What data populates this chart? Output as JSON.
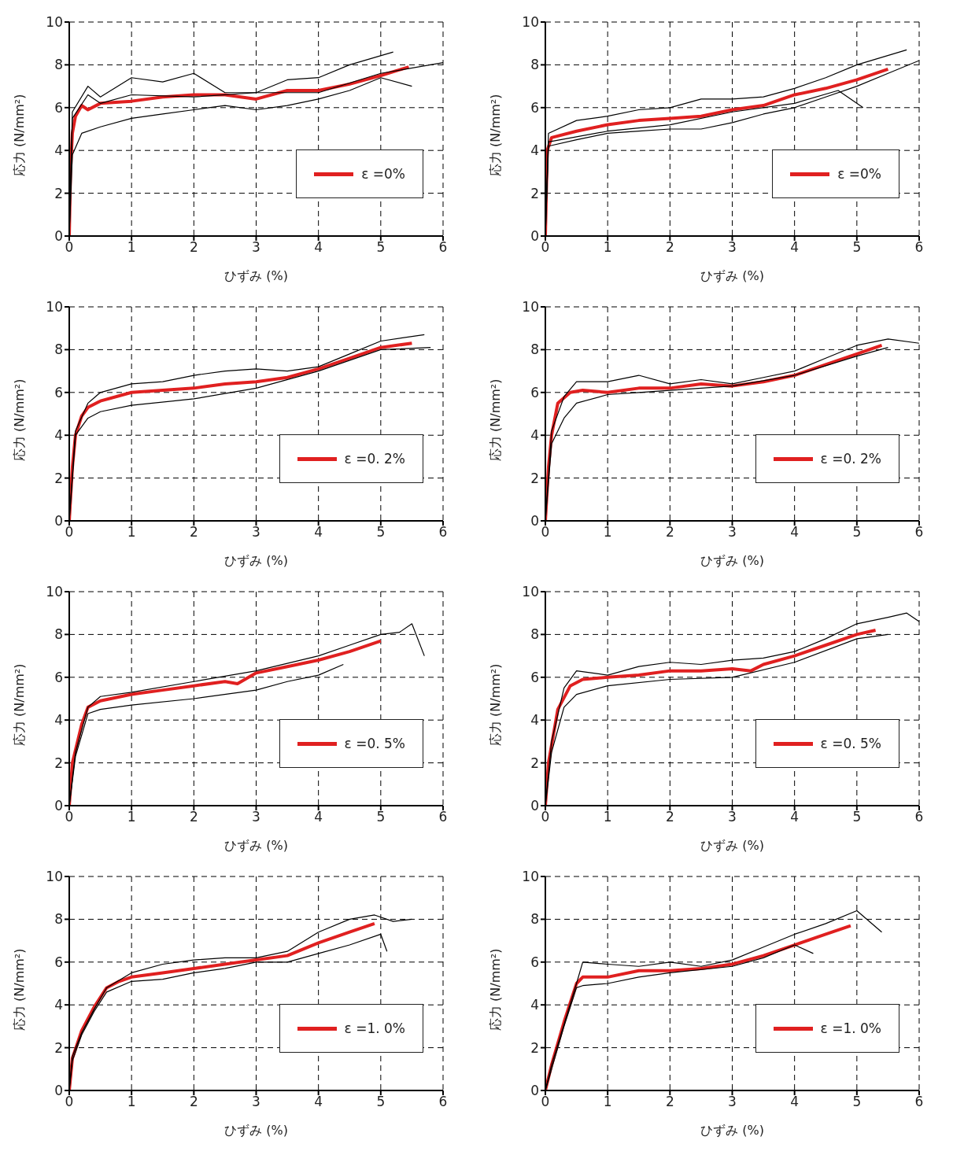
{
  "chart_data": [
    {
      "type": "line",
      "xlabel": "ひずみ (%)",
      "ylabel": "応力 (N/mm²)",
      "xlim": [
        0,
        6
      ],
      "ylim": [
        0,
        10
      ],
      "xticks": [
        0,
        1,
        2,
        3,
        4,
        5,
        6
      ],
      "yticks": [
        0,
        2,
        4,
        6,
        8,
        10
      ],
      "grid": true,
      "legend": "bottom right",
      "series": [
        {
          "name": "ε =0%",
          "color": "#e02020",
          "x": [
            0,
            0.02,
            0.05,
            0.1,
            0.2,
            0.3,
            0.5,
            1,
            1.5,
            2,
            2.5,
            3,
            3.5,
            4,
            4.5,
            5,
            5.45
          ],
          "values": [
            0,
            3,
            4.8,
            5.6,
            6.1,
            5.9,
            6.2,
            6.3,
            6.5,
            6.6,
            6.6,
            6.4,
            6.8,
            6.8,
            7.1,
            7.5,
            7.9
          ]
        },
        {
          "color": "#000000",
          "x": [
            0,
            0.05,
            0.3,
            0.5,
            1,
            1.5,
            2,
            2.5,
            3,
            3.5,
            4,
            4.5,
            5.2
          ],
          "values": [
            0,
            5.8,
            7,
            6.5,
            7.4,
            7.2,
            7.6,
            6.7,
            6.7,
            7.3,
            7.4,
            8,
            8.6
          ]
        },
        {
          "color": "#000000",
          "x": [
            0,
            0.05,
            0.2,
            0.5,
            1,
            1.5,
            2,
            2.5,
            3,
            3.5,
            4,
            4.5,
            5,
            5.5
          ],
          "values": [
            0,
            3.8,
            4.8,
            5.1,
            5.5,
            5.7,
            5.9,
            6.1,
            5.9,
            6.1,
            6.4,
            6.8,
            7.4,
            7
          ]
        },
        {
          "color": "#000000",
          "x": [
            0,
            0.05,
            0.3,
            0.5,
            1,
            2,
            3,
            4,
            5,
            6
          ],
          "values": [
            0,
            5.5,
            6.6,
            6.2,
            6.6,
            6.5,
            6.7,
            6.7,
            7.6,
            8.1
          ]
        }
      ]
    },
    {
      "type": "line",
      "xlabel": "ひずみ (%)",
      "ylabel": "応力 (N/mm²)",
      "xlim": [
        0,
        6
      ],
      "ylim": [
        0,
        10
      ],
      "xticks": [
        0,
        1,
        2,
        3,
        4,
        5,
        6
      ],
      "yticks": [
        0,
        2,
        4,
        6,
        8,
        10
      ],
      "grid": true,
      "legend": "bottom right",
      "series": [
        {
          "name": "ε =0%",
          "color": "#e02020",
          "x": [
            0,
            0.03,
            0.1,
            0.5,
            1,
            1.5,
            2,
            2.5,
            3,
            3.5,
            4,
            4.5,
            5,
            5.5
          ],
          "values": [
            0,
            4,
            4.6,
            4.9,
            5.2,
            5.4,
            5.5,
            5.6,
            5.9,
            6.1,
            6.6,
            6.9,
            7.3,
            7.8
          ]
        },
        {
          "color": "#000000",
          "x": [
            0,
            0.05,
            0.5,
            1,
            1.5,
            2,
            2.5,
            3,
            3.5,
            4,
            4.5,
            5,
            5.8
          ],
          "values": [
            0,
            4.8,
            5.4,
            5.6,
            5.9,
            6,
            6.4,
            6.4,
            6.5,
            6.9,
            7.4,
            8,
            8.7
          ]
        },
        {
          "color": "#000000",
          "x": [
            0,
            0.05,
            0.5,
            1,
            1.5,
            2,
            2.5,
            3,
            3.5,
            4,
            4.5,
            5,
            5.5,
            6
          ],
          "values": [
            0,
            4.2,
            4.5,
            4.8,
            4.9,
            5,
            5,
            5.3,
            5.7,
            6,
            6.5,
            7,
            7.6,
            8.2
          ]
        },
        {
          "color": "#000000",
          "x": [
            0,
            0.05,
            1,
            2,
            3,
            4,
            4.7,
            5.1
          ],
          "values": [
            0,
            4.4,
            4.9,
            5.2,
            5.8,
            6.2,
            6.8,
            6
          ]
        }
      ]
    },
    {
      "type": "line",
      "xlabel": "ひずみ (%)",
      "ylabel": "応力 (N/mm²)",
      "xlim": [
        0,
        6
      ],
      "ylim": [
        0,
        10
      ],
      "xticks": [
        0,
        1,
        2,
        3,
        4,
        5,
        6
      ],
      "yticks": [
        0,
        2,
        4,
        6,
        8,
        10
      ],
      "grid": true,
      "legend": "bottom right",
      "series": [
        {
          "name": "ε =0. 2%",
          "color": "#e02020",
          "x": [
            0,
            0.05,
            0.1,
            0.2,
            0.3,
            0.5,
            1,
            1.5,
            2,
            2.5,
            3,
            3.5,
            4,
            4.5,
            5,
            5.5
          ],
          "values": [
            0,
            2.5,
            4,
            4.9,
            5.3,
            5.6,
            6,
            6.1,
            6.2,
            6.4,
            6.5,
            6.7,
            7.1,
            7.6,
            8.1,
            8.3
          ]
        },
        {
          "color": "#000000",
          "x": [
            0,
            0.1,
            0.3,
            0.5,
            1,
            1.5,
            2,
            2.5,
            3,
            3.5,
            4,
            4.5,
            5,
            5.7
          ],
          "values": [
            0,
            4.2,
            5.5,
            6,
            6.4,
            6.5,
            6.8,
            7,
            7.1,
            7,
            7.2,
            7.8,
            8.4,
            8.7
          ]
        },
        {
          "color": "#000000",
          "x": [
            0,
            0.1,
            0.3,
            0.5,
            1,
            2,
            3,
            4,
            5,
            5.8
          ],
          "values": [
            0,
            4,
            4.8,
            5.1,
            5.4,
            5.7,
            6.2,
            7,
            8,
            8.1
          ]
        }
      ]
    },
    {
      "type": "line",
      "xlabel": "ひずみ (%)",
      "ylabel": "応力 (N/mm²)",
      "xlim": [
        0,
        6
      ],
      "ylim": [
        0,
        10
      ],
      "xticks": [
        0,
        1,
        2,
        3,
        4,
        5,
        6
      ],
      "yticks": [
        0,
        2,
        4,
        6,
        8,
        10
      ],
      "grid": true,
      "legend": "bottom right",
      "series": [
        {
          "name": "ε =0. 2%",
          "color": "#e02020",
          "x": [
            0,
            0.05,
            0.1,
            0.2,
            0.4,
            0.6,
            1,
            1.5,
            2,
            2.5,
            3,
            3.5,
            4,
            4.5,
            5,
            5.4
          ],
          "values": [
            0,
            2.5,
            4,
            5.5,
            6,
            6.1,
            6,
            6.2,
            6.2,
            6.4,
            6.3,
            6.5,
            6.8,
            7.3,
            7.8,
            8.2
          ]
        },
        {
          "color": "#000000",
          "x": [
            0,
            0.1,
            0.3,
            0.5,
            1,
            1.5,
            2,
            2.5,
            3,
            3.5,
            4,
            4.5,
            5,
            5.5,
            6
          ],
          "values": [
            0,
            4.2,
            5.8,
            6.5,
            6.5,
            6.8,
            6.4,
            6.6,
            6.4,
            6.7,
            7,
            7.6,
            8.2,
            8.5,
            8.3
          ]
        },
        {
          "color": "#000000",
          "x": [
            0,
            0.1,
            0.3,
            0.5,
            1,
            1.5,
            2,
            3,
            4,
            5,
            5.5
          ],
          "values": [
            0,
            3.6,
            4.8,
            5.5,
            5.9,
            6,
            6.1,
            6.3,
            6.8,
            7.7,
            8.1
          ]
        }
      ]
    },
    {
      "type": "line",
      "xlabel": "ひずみ (%)",
      "ylabel": "応力 (N/mm²)",
      "xlim": [
        0,
        6
      ],
      "ylim": [
        0,
        10
      ],
      "xticks": [
        0,
        1,
        2,
        3,
        4,
        5,
        6
      ],
      "yticks": [
        0,
        2,
        4,
        6,
        8,
        10
      ],
      "grid": true,
      "legend": "bottom right",
      "series": [
        {
          "name": "ε =0. 5%",
          "color": "#e02020",
          "x": [
            0,
            0.05,
            0.2,
            0.3,
            0.5,
            1,
            1.5,
            2,
            2.5,
            2.7,
            3,
            3.5,
            4,
            4.5,
            5
          ],
          "values": [
            0,
            2,
            3.8,
            4.6,
            4.9,
            5.2,
            5.4,
            5.6,
            5.8,
            5.7,
            6.2,
            6.5,
            6.8,
            7.2,
            7.7
          ]
        },
        {
          "color": "#000000",
          "x": [
            0,
            0.1,
            0.3,
            0.5,
            1,
            2,
            3,
            4,
            4.5,
            5,
            5.3,
            5.5,
            5.7
          ],
          "values": [
            0,
            2.5,
            4.6,
            5.1,
            5.3,
            5.8,
            6.3,
            7,
            7.5,
            8,
            8.1,
            8.5,
            7
          ]
        },
        {
          "color": "#000000",
          "x": [
            0,
            0.1,
            0.3,
            0.5,
            1,
            2,
            3,
            3.5,
            4,
            4.4
          ],
          "values": [
            0,
            2.3,
            4.3,
            4.5,
            4.7,
            5,
            5.4,
            5.8,
            6.1,
            6.6
          ]
        }
      ]
    },
    {
      "type": "line",
      "xlabel": "ひずみ (%)",
      "ylabel": "応力 (N/mm²)",
      "xlim": [
        0,
        6
      ],
      "ylim": [
        0,
        10
      ],
      "xticks": [
        0,
        1,
        2,
        3,
        4,
        5,
        6
      ],
      "yticks": [
        0,
        2,
        4,
        6,
        8,
        10
      ],
      "grid": true,
      "legend": "bottom right",
      "series": [
        {
          "name": "ε =0. 5%",
          "color": "#e02020",
          "x": [
            0,
            0.05,
            0.2,
            0.4,
            0.6,
            1,
            1.5,
            2,
            2.5,
            3,
            3.3,
            3.5,
            4,
            4.5,
            5,
            5.3
          ],
          "values": [
            0,
            2,
            4.5,
            5.6,
            5.9,
            6,
            6.1,
            6.3,
            6.3,
            6.4,
            6.3,
            6.6,
            7,
            7.5,
            8,
            8.2
          ]
        },
        {
          "color": "#000000",
          "x": [
            0,
            0.1,
            0.3,
            0.5,
            1,
            1.5,
            2,
            2.5,
            3,
            3.5,
            4,
            4.5,
            5,
            5.5,
            5.8,
            6
          ],
          "values": [
            0,
            3,
            5.5,
            6.3,
            6.1,
            6.5,
            6.7,
            6.6,
            6.8,
            6.9,
            7.2,
            7.8,
            8.5,
            8.8,
            9,
            8.6
          ]
        },
        {
          "color": "#000000",
          "x": [
            0,
            0.1,
            0.3,
            0.5,
            1,
            2,
            3,
            4,
            5,
            5.5
          ],
          "values": [
            0,
            2.5,
            4.6,
            5.2,
            5.6,
            5.9,
            6,
            6.7,
            7.8,
            8
          ]
        }
      ]
    },
    {
      "type": "line",
      "xlabel": "ひずみ (%)",
      "ylabel": "応力 (N/mm²)",
      "xlim": [
        0,
        6
      ],
      "ylim": [
        0,
        10
      ],
      "xticks": [
        0,
        1,
        2,
        3,
        4,
        5,
        6
      ],
      "yticks": [
        0,
        2,
        4,
        6,
        8,
        10
      ],
      "grid": true,
      "legend": "bottom right",
      "series": [
        {
          "name": "ε =1. 0%",
          "color": "#e02020",
          "x": [
            0,
            0.05,
            0.2,
            0.4,
            0.6,
            0.8,
            1,
            1.5,
            2,
            2.5,
            3,
            3.5,
            4,
            4.5,
            4.9
          ],
          "values": [
            0,
            1.5,
            2.8,
            3.9,
            4.8,
            5.1,
            5.3,
            5.5,
            5.7,
            5.9,
            6.1,
            6.3,
            6.9,
            7.4,
            7.8
          ]
        },
        {
          "color": "#000000",
          "x": [
            0,
            0.05,
            0.2,
            0.4,
            0.6,
            1,
            1.5,
            2,
            2.5,
            3,
            3.5,
            4,
            4.5,
            4.9,
            5.2,
            5.5
          ],
          "values": [
            0,
            1.6,
            2.7,
            3.8,
            4.8,
            5.5,
            5.9,
            6.1,
            6.2,
            6.2,
            6.5,
            7.4,
            8,
            8.2,
            7.9,
            8
          ]
        },
        {
          "color": "#000000",
          "x": [
            0,
            0.05,
            0.2,
            0.4,
            0.6,
            1,
            1.5,
            2,
            2.5,
            3,
            3.5,
            4,
            4.5,
            5,
            5.1
          ],
          "values": [
            0,
            1.4,
            2.6,
            3.7,
            4.6,
            5.1,
            5.2,
            5.5,
            5.7,
            6,
            6,
            6.4,
            6.8,
            7.3,
            6.5
          ]
        }
      ]
    },
    {
      "type": "line",
      "xlabel": "ひずみ (%)",
      "ylabel": "応力 (N/mm²)",
      "xlim": [
        0,
        6
      ],
      "ylim": [
        0,
        10
      ],
      "xticks": [
        0,
        1,
        2,
        3,
        4,
        5,
        6
      ],
      "yticks": [
        0,
        2,
        4,
        6,
        8,
        10
      ],
      "grid": true,
      "legend": "bottom right",
      "series": [
        {
          "name": "ε =1. 0%",
          "color": "#e02020",
          "x": [
            0,
            0.1,
            0.3,
            0.5,
            0.6,
            1,
            1.5,
            2,
            2.5,
            3,
            3.5,
            4,
            4.5,
            4.9
          ],
          "values": [
            0,
            1.2,
            3.2,
            5,
            5.3,
            5.3,
            5.6,
            5.6,
            5.7,
            5.9,
            6.3,
            6.8,
            7.3,
            7.7
          ]
        },
        {
          "color": "#000000",
          "x": [
            0,
            0.1,
            0.3,
            0.5,
            0.6,
            1,
            1.5,
            2,
            2.5,
            3,
            3.5,
            4,
            4.5,
            5,
            5.4
          ],
          "values": [
            0,
            1.2,
            3.1,
            5,
            6,
            5.9,
            5.8,
            6,
            5.8,
            6.1,
            6.7,
            7.3,
            7.8,
            8.4,
            7.4
          ]
        },
        {
          "color": "#000000",
          "x": [
            0,
            0.1,
            0.3,
            0.5,
            0.6,
            1,
            1.5,
            2,
            3,
            3.5,
            4,
            4.3
          ],
          "values": [
            0,
            1,
            3,
            4.8,
            4.9,
            5,
            5.3,
            5.5,
            5.8,
            6.2,
            6.8,
            6.4
          ]
        }
      ]
    }
  ]
}
